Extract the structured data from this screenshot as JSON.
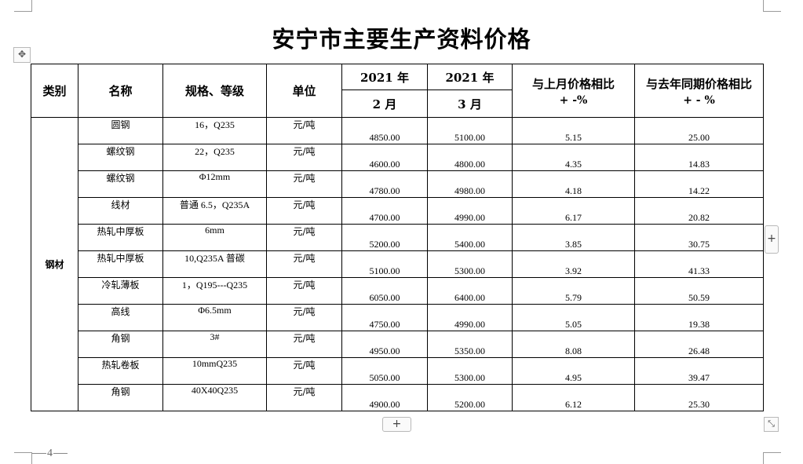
{
  "title": "安宁市主要生产资料价格",
  "page_number": "4",
  "table": {
    "headers": {
      "category": "类别",
      "name": "名称",
      "spec": "规格、等级",
      "unit": "单位",
      "feb_year": "2021 年",
      "feb_month": "2 月",
      "mar_year": "2021 年",
      "mar_month": "3 月",
      "mom_line1": "与上月价格相比",
      "mom_line2": "+ -%",
      "yoy_line1": "与去年同期价格相比",
      "yoy_line2": "+ - %"
    },
    "category": "钢材",
    "rows": [
      {
        "name": "圆钢",
        "spec": "16，Q235",
        "unit": "元/吨",
        "feb": "4850.00",
        "mar": "5100.00",
        "mom": "5.15",
        "yoy": "25.00"
      },
      {
        "name": "螺纹钢",
        "spec": "22，Q235",
        "unit": "元/吨",
        "feb": "4600.00",
        "mar": "4800.00",
        "mom": "4.35",
        "yoy": "14.83"
      },
      {
        "name": "螺纹钢",
        "spec": "Φ12mm",
        "unit": "元/吨",
        "feb": "4780.00",
        "mar": "4980.00",
        "mom": "4.18",
        "yoy": "14.22"
      },
      {
        "name": "线材",
        "spec": "普通 6.5，Q235A",
        "unit": "元/吨",
        "feb": "4700.00",
        "mar": "4990.00",
        "mom": "6.17",
        "yoy": "20.82"
      },
      {
        "name": "热轧中厚板",
        "spec": "6mm",
        "unit": "元/吨",
        "feb": "5200.00",
        "mar": "5400.00",
        "mom": "3.85",
        "yoy": "30.75"
      },
      {
        "name": "热轧中厚板",
        "spec": "10,Q235A 普碳",
        "unit": "元/吨",
        "feb": "5100.00",
        "mar": "5300.00",
        "mom": "3.92",
        "yoy": "41.33"
      },
      {
        "name": "冷轧薄板",
        "spec": "1，Q195---Q235",
        "unit": "元/吨",
        "feb": "6050.00",
        "mar": "6400.00",
        "mom": "5.79",
        "yoy": "50.59"
      },
      {
        "name": "高线",
        "spec": "Φ6.5mm",
        "unit": "元/吨",
        "feb": "4750.00",
        "mar": "4990.00",
        "mom": "5.05",
        "yoy": "19.38"
      },
      {
        "name": "角钢",
        "spec": "3#",
        "unit": "元/吨",
        "feb": "4950.00",
        "mar": "5350.00",
        "mom": "8.08",
        "yoy": "26.48"
      },
      {
        "name": "热轧卷板",
        "spec": "10mmQ235",
        "unit": "元/吨",
        "feb": "5050.00",
        "mar": "5300.00",
        "mom": "4.95",
        "yoy": "39.47"
      },
      {
        "name": "角钢",
        "spec": "40X40Q235",
        "unit": "元/吨",
        "feb": "4900.00",
        "mar": "5200.00",
        "mom": "6.12",
        "yoy": "25.30"
      }
    ]
  },
  "controls": {
    "move_icon": "move-arrows-icon",
    "add_row_label": "+",
    "add_col_label": "+",
    "resize_icon": "resize-diagonal-icon"
  }
}
